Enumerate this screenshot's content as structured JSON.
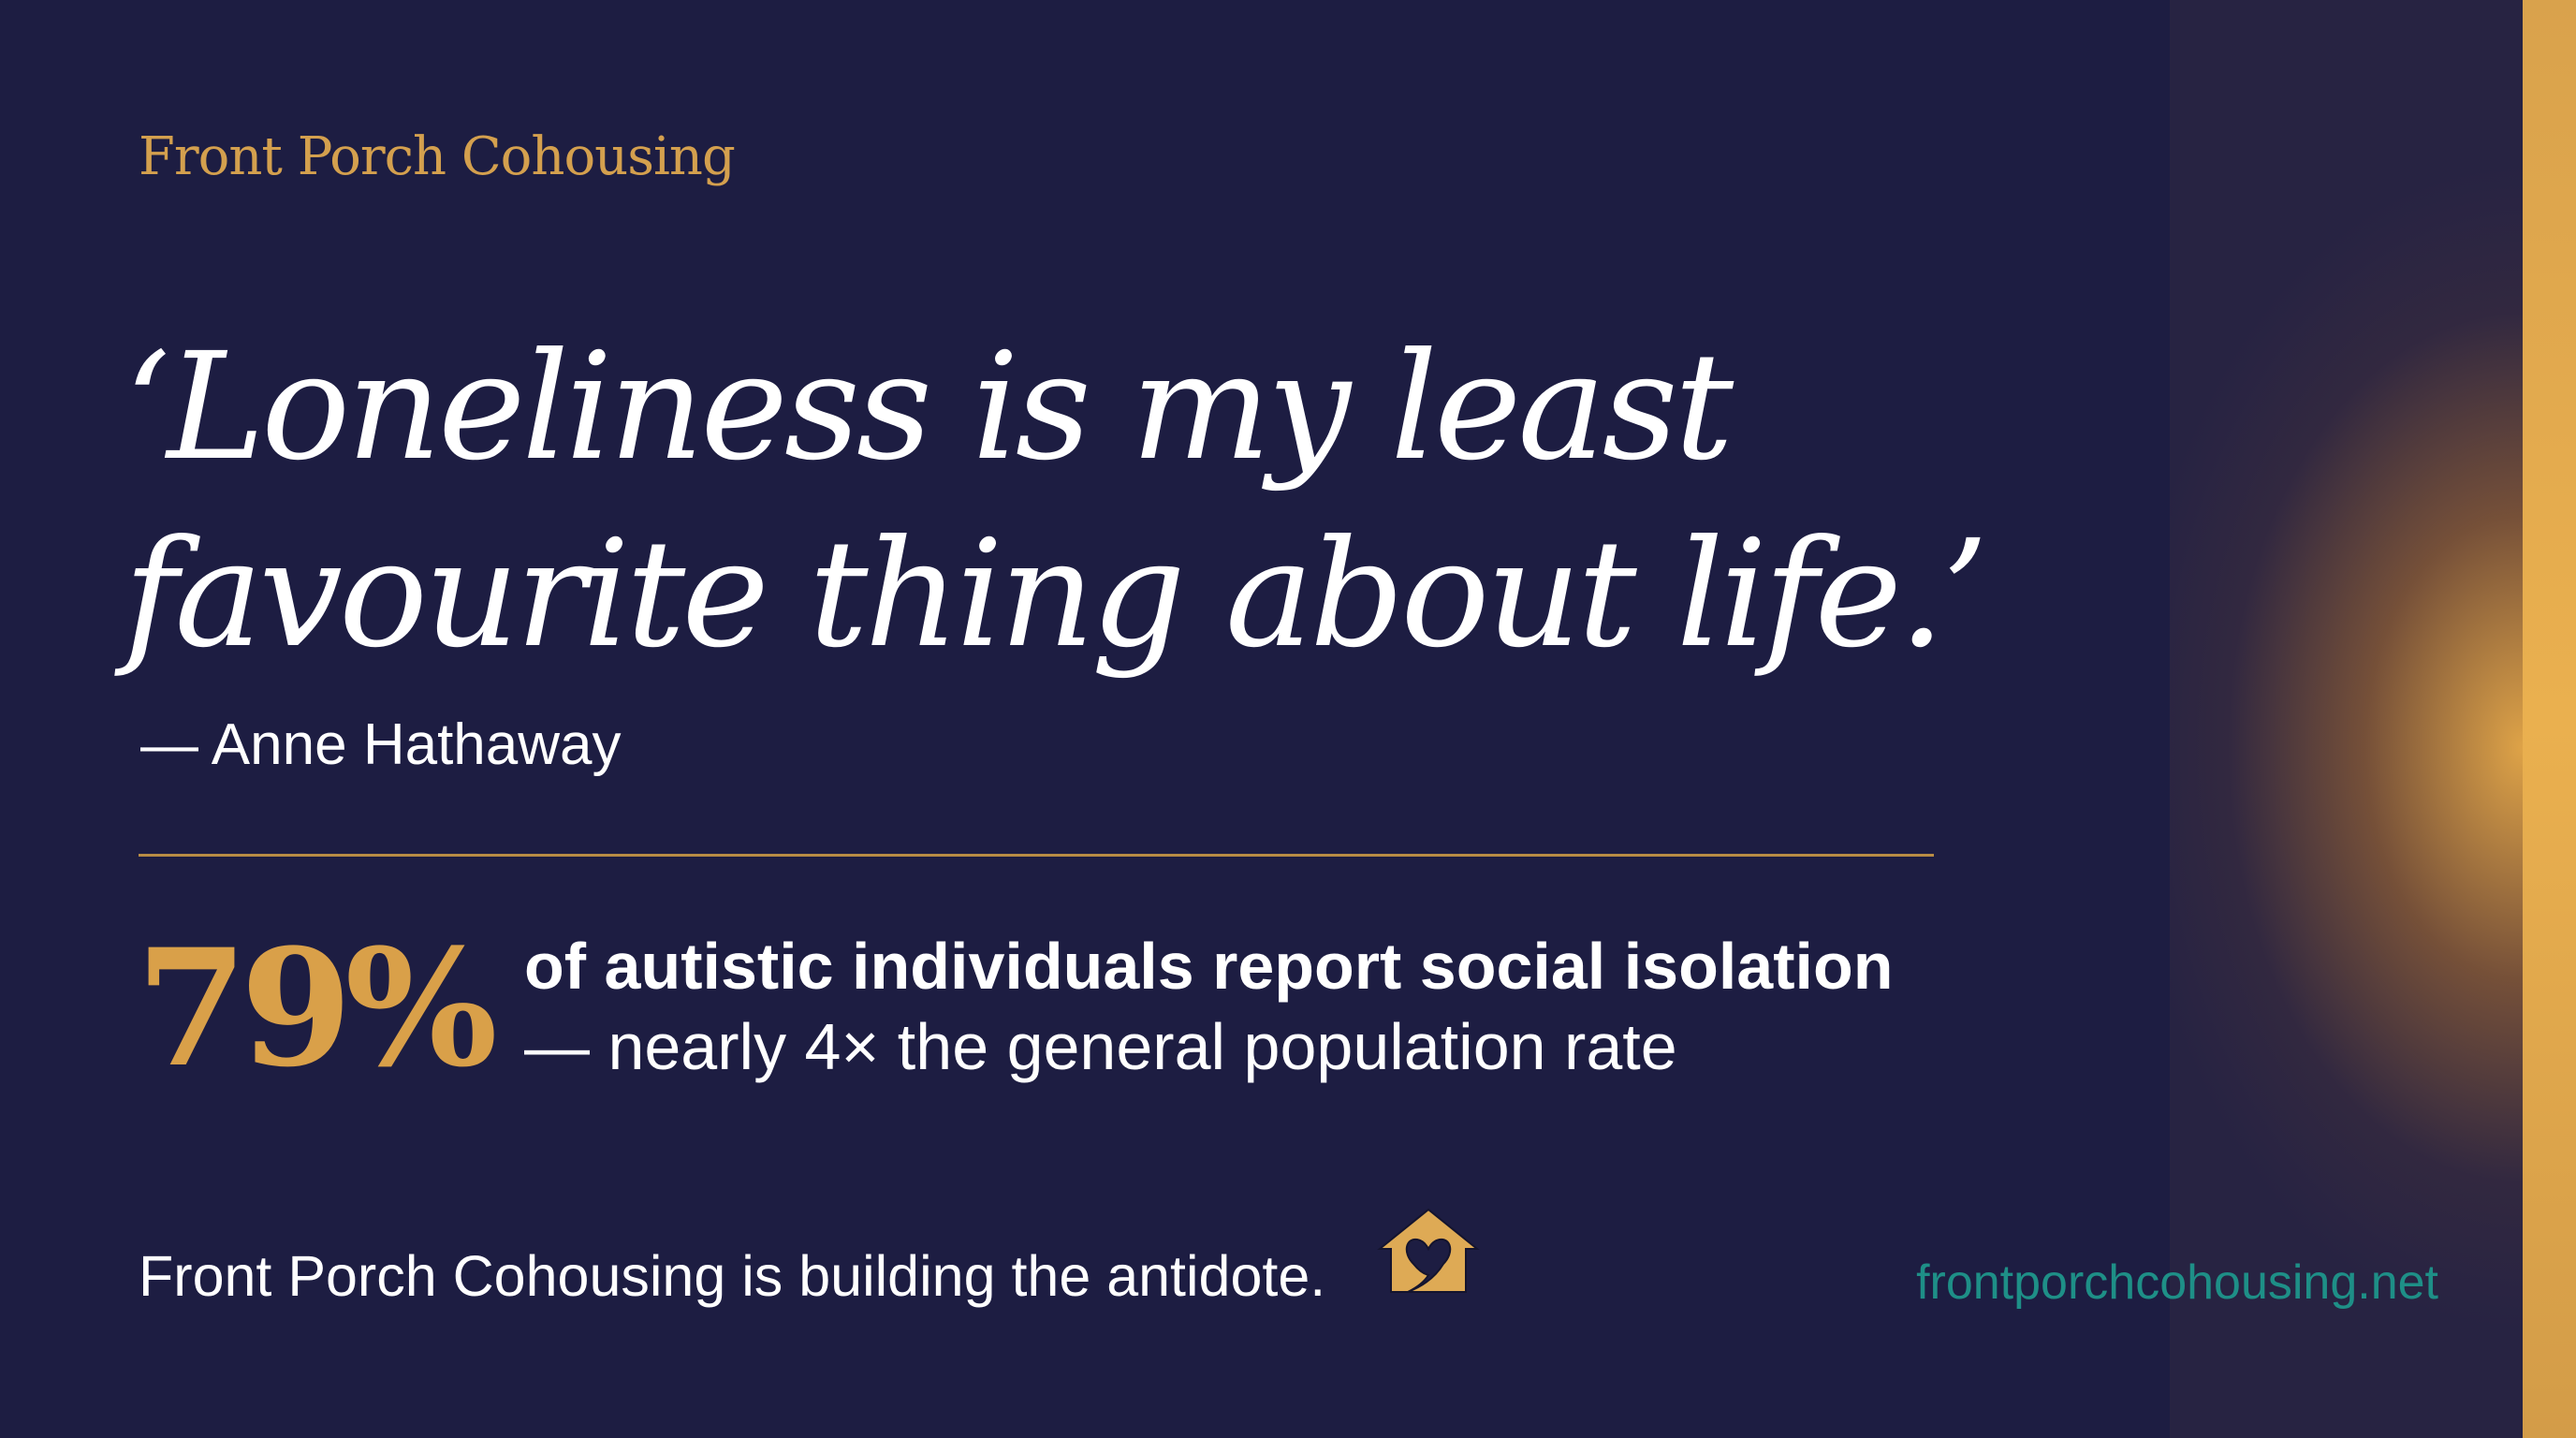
{
  "brand": "Front Porch Cohousing",
  "quote": {
    "line1": "‘Loneliness is my least",
    "line2": "favourite thing about life.’",
    "attribution": "— Anne Hathaway"
  },
  "stat": {
    "value": "79%",
    "line1": "of autistic individuals report social isolation",
    "line2": "— nearly 4× the general population rate"
  },
  "footer": {
    "tagline": "Front Porch Cohousing is building the antidote.",
    "icon": "house-heart-icon",
    "url": "frontporchcohousing.net"
  },
  "colors": {
    "background": "#1d1d42",
    "accent": "#d9a049",
    "url": "#1e8f87"
  }
}
